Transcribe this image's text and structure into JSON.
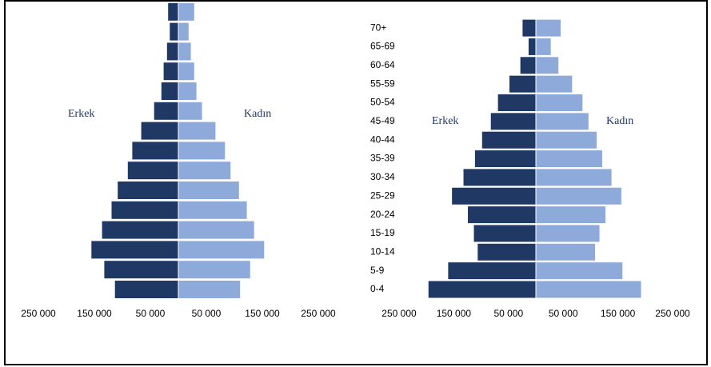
{
  "chart_data": [
    {
      "type": "pyramid",
      "categories": [
        null,
        null,
        null,
        null,
        null,
        null,
        null,
        null,
        null,
        null,
        null,
        null,
        null,
        null,
        null
      ],
      "series": [
        {
          "name": "Erkek",
          "color": "#1f3864",
          "values": [
            -114000,
            -133000,
            -156000,
            -137000,
            -120000,
            -109000,
            -91000,
            -83000,
            -67000,
            -44000,
            -31000,
            -27000,
            -21000,
            -16000,
            -19000
          ]
        },
        {
          "name": "Kadın",
          "color": "#8eaadb",
          "values": [
            111000,
            129000,
            154000,
            136000,
            123000,
            109000,
            94000,
            84000,
            67000,
            43000,
            33000,
            29000,
            23000,
            19000,
            29000
          ]
        }
      ],
      "xlim": [
        -250000,
        250000
      ],
      "xticks": [
        {
          "value": -250000,
          "label": "250 000"
        },
        {
          "value": -150000,
          "label": "150 000"
        },
        {
          "value": -50000,
          "label": "50 000"
        },
        {
          "value": 50000,
          "label": "50 000"
        },
        {
          "value": 150000,
          "label": "150 000"
        },
        {
          "value": 250000,
          "label": "250 000"
        }
      ]
    },
    {
      "type": "pyramid",
      "categories": [
        "0-4",
        "5-9",
        "10-14",
        "15-19",
        "20-24",
        "25-29",
        "30-34",
        "35-39",
        "40-44",
        "45-49",
        "50-54",
        "55-59",
        "60-64",
        "65-69",
        "70+"
      ],
      "series": [
        {
          "name": "Erkek",
          "color": "#1f3864",
          "values": [
            -197000,
            -161000,
            -107000,
            -114000,
            -125000,
            -154000,
            -133000,
            -112000,
            -99000,
            -83000,
            -70000,
            -49000,
            -29000,
            -14000,
            -25000
          ]
        },
        {
          "name": "Kadın",
          "color": "#8eaadb",
          "values": [
            193000,
            159000,
            109000,
            117000,
            128000,
            157000,
            139000,
            122000,
            112000,
            97000,
            86000,
            67000,
            42000,
            28000,
            46000
          ]
        }
      ],
      "xlim": [
        -250000,
        250000
      ],
      "xticks": [
        {
          "value": -250000,
          "label": "250 000"
        },
        {
          "value": -150000,
          "label": "150 000"
        },
        {
          "value": -50000,
          "label": "50 000"
        },
        {
          "value": 50000,
          "label": "50 000"
        },
        {
          "value": 150000,
          "label": "150 000"
        },
        {
          "value": 250000,
          "label": "250 000"
        }
      ]
    }
  ]
}
